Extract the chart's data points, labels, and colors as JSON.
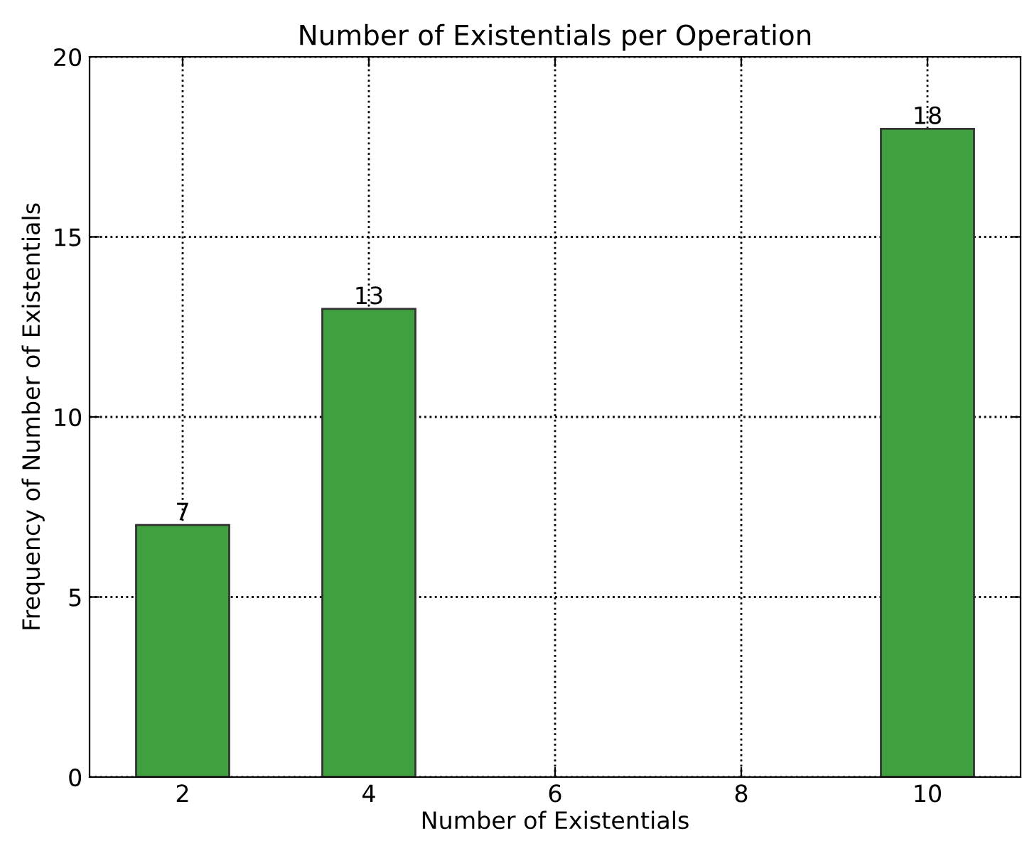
{
  "chart_data": {
    "type": "bar",
    "title": "Number of Existentials per Operation",
    "xlabel": "Number of Existentials",
    "ylabel": "Frequency of Number of Existentials",
    "x": [
      2,
      4,
      10
    ],
    "values": [
      7,
      13,
      18
    ],
    "color": "#40a040",
    "xlim": [
      1,
      11
    ],
    "xticks": [
      2,
      4,
      6,
      8,
      10
    ],
    "ylim": [
      0,
      20
    ],
    "yticks": [
      0,
      5,
      10,
      15,
      20
    ],
    "grid": true,
    "data_labels": true
  }
}
